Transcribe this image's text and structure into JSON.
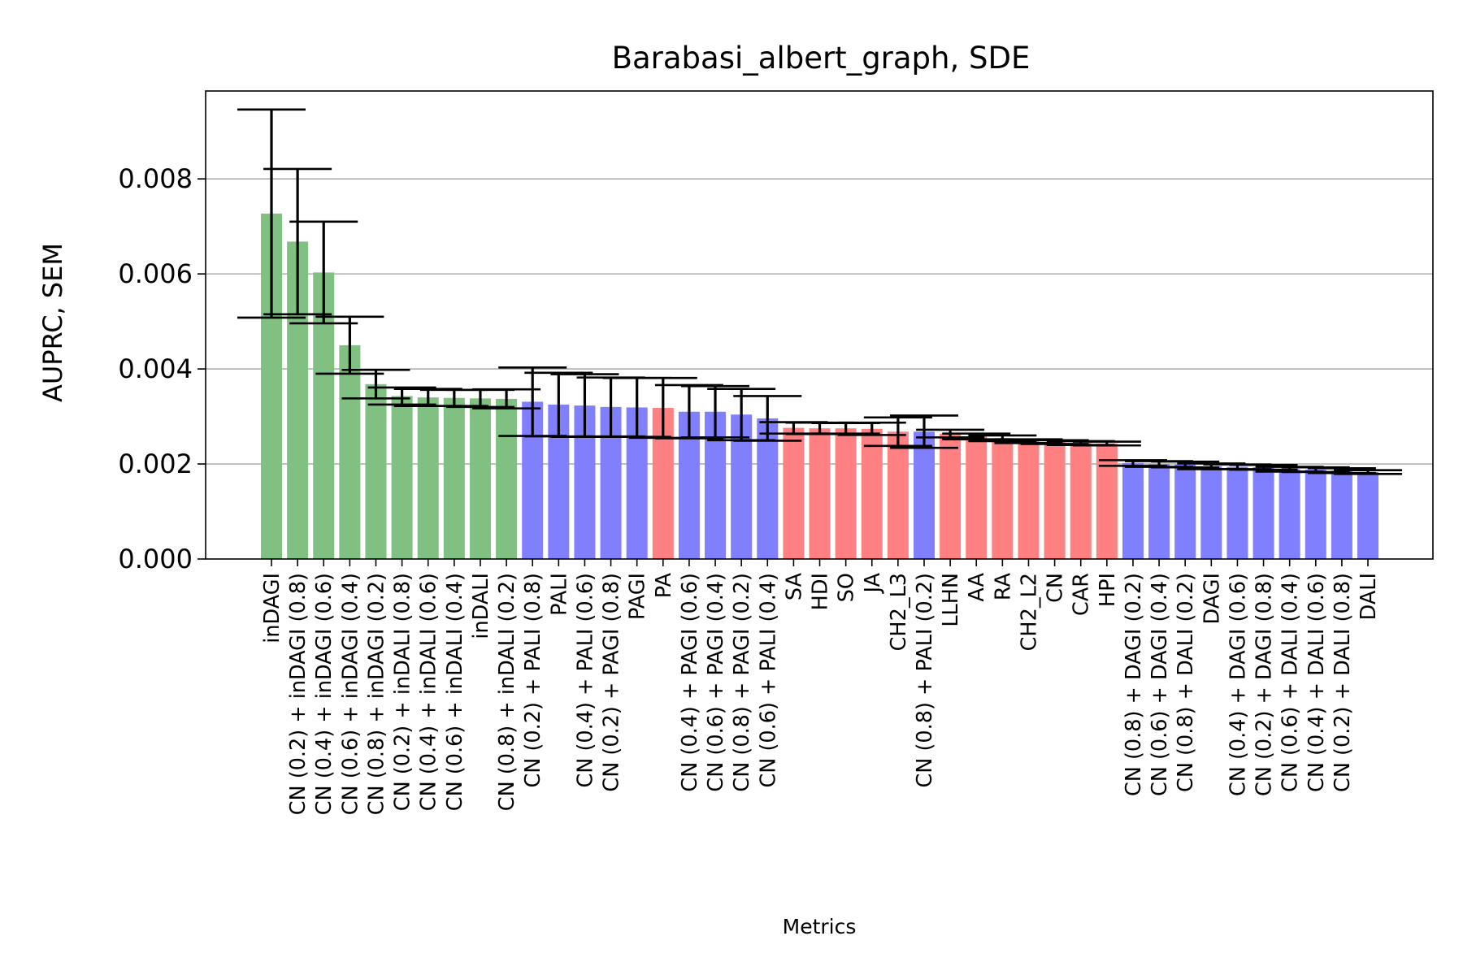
{
  "chart_data": {
    "type": "bar",
    "title": "Barabasi_albert_graph, SDE",
    "xlabel": "Metrics",
    "ylabel": "AUPRC, SEM",
    "ylim": [
      0,
      0.00985
    ],
    "yticks": [
      "0.000",
      "0.002",
      "0.004",
      "0.006",
      "0.008"
    ],
    "grid": "horizontal",
    "colors": {
      "green": "#80c080",
      "blue": "#8080ff",
      "red": "#ff8080",
      "error": "#000000",
      "grid": "#b0b0b0"
    },
    "categories": [
      "inDAGI",
      "CN (0.2) + inDAGI (0.8)",
      "CN (0.4) + inDAGI (0.6)",
      "CN (0.6) + inDAGI (0.4)",
      "CN (0.8) + inDAGI (0.2)",
      "CN (0.2) + inDALI (0.8)",
      "CN (0.4) + inDALI (0.6)",
      "CN (0.6) + inDALI (0.4)",
      "inDALI",
      "CN (0.8) + inDALI (0.2)",
      "CN (0.2) + PALI (0.8)",
      "PALI",
      "CN (0.4) + PALI (0.6)",
      "CN (0.2) + PAGI (0.8)",
      "PAGI",
      "PA",
      "CN (0.4) + PAGI (0.6)",
      "CN (0.6) + PAGI (0.4)",
      "CN (0.8) + PAGI (0.2)",
      "CN (0.6) + PALI (0.4)",
      "SA",
      "HDI",
      "SO",
      "JA",
      "CH2_L3",
      "CN (0.8) + PALI (0.2)",
      "LLHN",
      "AA",
      "RA",
      "CH2_L2",
      "CN",
      "CAR",
      "HPI",
      "CN (0.8) + DAGI (0.2)",
      "CN (0.6) + DAGI (0.4)",
      "CN (0.8) + DALI (0.2)",
      "DAGI",
      "CN (0.4) + DAGI (0.6)",
      "CN (0.2) + DAGI (0.8)",
      "CN (0.6) + DALI (0.4)",
      "CN (0.4) + DALI (0.6)",
      "CN (0.2) + DALI (0.8)",
      "DALI"
    ],
    "values": [
      0.00727,
      0.00668,
      0.00603,
      0.0045,
      0.00368,
      0.00343,
      0.0034,
      0.00339,
      0.00338,
      0.00337,
      0.00331,
      0.00325,
      0.00323,
      0.0032,
      0.00319,
      0.00318,
      0.0031,
      0.0031,
      0.00304,
      0.00296,
      0.00276,
      0.00275,
      0.00275,
      0.00274,
      0.00268,
      0.00268,
      0.00264,
      0.00258,
      0.00254,
      0.00248,
      0.00246,
      0.00244,
      0.00243,
      0.00202,
      0.002,
      0.00199,
      0.00195,
      0.00194,
      0.00193,
      0.00189,
      0.00188,
      0.00186,
      0.00183
    ],
    "errors": [
      0.00219,
      0.00153,
      0.00107,
      0.0006,
      0.0003,
      0.00018,
      0.00018,
      0.00017,
      0.00018,
      0.0002,
      0.00072,
      0.00067,
      0.00066,
      0.00062,
      0.00062,
      0.00063,
      0.00056,
      0.00054,
      0.00054,
      0.00047,
      0.00012,
      0.00012,
      0.00011,
      0.00013,
      0.0003,
      0.00034,
      8e-05,
      6e-05,
      6e-05,
      4e-05,
      4e-05,
      4e-05,
      4e-05,
      6e-05,
      6e-05,
      6e-05,
      6e-05,
      5e-05,
      5e-05,
      5e-05,
      5e-05,
      5e-05,
      4e-05
    ],
    "bar_colors": [
      "green",
      "green",
      "green",
      "green",
      "green",
      "green",
      "green",
      "green",
      "green",
      "green",
      "blue",
      "blue",
      "blue",
      "blue",
      "blue",
      "red",
      "blue",
      "blue",
      "blue",
      "blue",
      "red",
      "red",
      "red",
      "red",
      "red",
      "blue",
      "red",
      "red",
      "red",
      "red",
      "red",
      "red",
      "red",
      "blue",
      "blue",
      "blue",
      "blue",
      "blue",
      "blue",
      "blue",
      "blue",
      "blue",
      "blue"
    ]
  }
}
